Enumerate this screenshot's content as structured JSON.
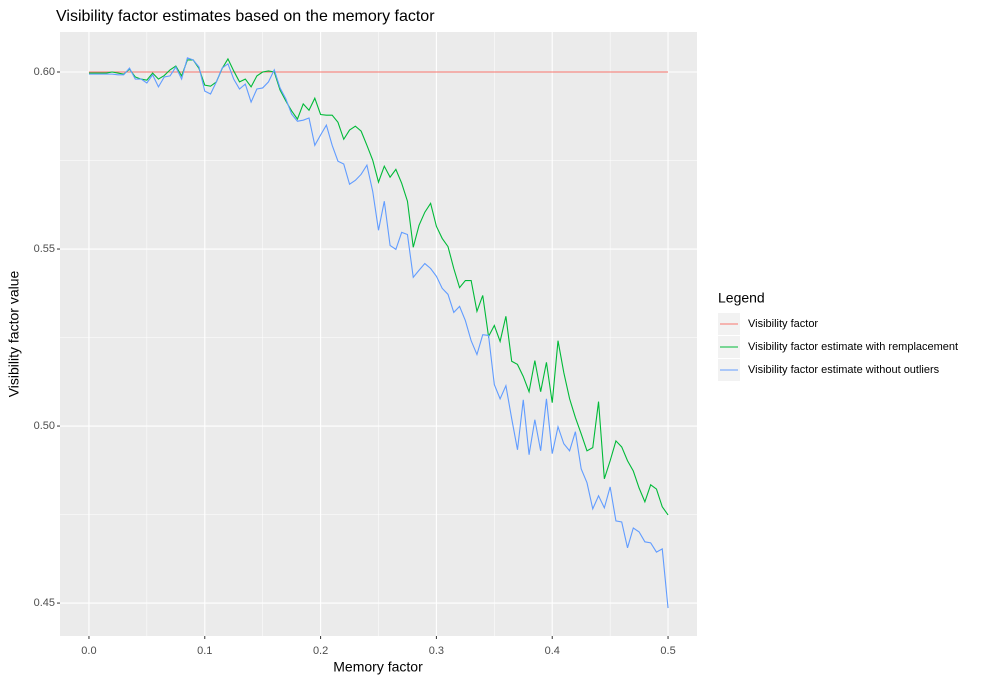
{
  "chart_data": {
    "type": "line",
    "title": "Visibility factor estimates based on the memory factor",
    "x_label": "Memory factor",
    "y_label": "Visibility factor value",
    "legend_title": "Legend",
    "legend_position": "right",
    "grid": true,
    "xlim": [
      -0.025,
      0.525
    ],
    "ylim": [
      0.4407,
      0.6113
    ],
    "xticks": [
      {
        "value": 0,
        "label": "0.0"
      },
      0.1,
      0.2,
      0.3,
      0.4,
      0.5
    ],
    "yticks": [
      0.45,
      {
        "value": 0.5,
        "label": "0.50"
      },
      0.55,
      {
        "value": 0.6,
        "label": "0.60"
      }
    ],
    "x": [
      0,
      0.005,
      0.01,
      0.015,
      0.02,
      0.025,
      0.03,
      0.035,
      0.04,
      0.045,
      0.05,
      0.055,
      0.06,
      0.065,
      0.07,
      0.075,
      0.08,
      0.085,
      0.09,
      0.095,
      0.1,
      0.105,
      0.11,
      0.115,
      0.12,
      0.125,
      0.13,
      0.135,
      0.14,
      0.145,
      0.15,
      0.155,
      0.16,
      0.165,
      0.17,
      0.175,
      0.18,
      0.185,
      0.19,
      0.195,
      0.2,
      0.205,
      0.21,
      0.215,
      0.22,
      0.225,
      0.23,
      0.235,
      0.24,
      0.245,
      0.25,
      0.255,
      0.26,
      0.265,
      0.27,
      0.275,
      0.28,
      0.285,
      0.29,
      0.295,
      0.3,
      0.305,
      0.31,
      0.315,
      0.32,
      0.325,
      0.33,
      0.335,
      0.34,
      0.345,
      0.35,
      0.355,
      0.36,
      0.365,
      0.37,
      0.375,
      0.38,
      0.385,
      0.39,
      0.395,
      0.4,
      0.405,
      0.41,
      0.415,
      0.42,
      0.425,
      0.43,
      0.435,
      0.44,
      0.445,
      0.45,
      0.455,
      0.46,
      0.465,
      0.47,
      0.475,
      0.48,
      0.485,
      0.49,
      0.495,
      0.5
    ],
    "series": [
      {
        "name": "Visibility factor",
        "color": "#F8766D",
        "values": [
          0.6,
          0.6,
          0.6,
          0.6,
          0.6,
          0.6,
          0.6,
          0.6,
          0.6,
          0.6,
          0.6,
          0.6,
          0.6,
          0.6,
          0.6,
          0.6,
          0.6,
          0.6,
          0.6,
          0.6,
          0.6,
          0.6,
          0.6,
          0.6,
          0.6,
          0.6,
          0.6,
          0.6,
          0.6,
          0.6,
          0.6,
          0.6,
          0.6,
          0.6,
          0.6,
          0.6,
          0.6,
          0.6,
          0.6,
          0.6,
          0.6,
          0.6,
          0.6,
          0.6,
          0.6,
          0.6,
          0.6,
          0.6,
          0.6,
          0.6,
          0.6,
          0.6,
          0.6,
          0.6,
          0.6,
          0.6,
          0.6,
          0.6,
          0.6,
          0.6,
          0.6,
          0.6,
          0.6,
          0.6,
          0.6,
          0.6,
          0.6,
          0.6,
          0.6,
          0.6,
          0.6,
          0.6,
          0.6,
          0.6,
          0.6,
          0.6,
          0.6,
          0.6,
          0.6,
          0.6,
          0.6,
          0.6,
          0.6,
          0.6,
          0.6,
          0.6,
          0.6,
          0.6,
          0.6,
          0.6,
          0.6,
          0.6,
          0.6,
          0.6,
          0.6,
          0.6,
          0.6,
          0.6,
          0.6,
          0.6,
          0.6
        ]
      },
      {
        "name": "Visibility factor estimate with remplacement",
        "color": "#00BA38",
        "values": [
          0.5997,
          0.5997,
          0.5997,
          0.5997,
          0.6,
          0.5997,
          0.5994,
          0.6008,
          0.5986,
          0.598,
          0.5977,
          0.5997,
          0.598,
          0.599,
          0.6006,
          0.6017,
          0.5989,
          0.6034,
          0.6034,
          0.601,
          0.5963,
          0.596,
          0.5972,
          0.601,
          0.6037,
          0.6003,
          0.5972,
          0.598,
          0.5958,
          0.5989,
          0.6,
          0.6003,
          0.6,
          0.5949,
          0.5918,
          0.589,
          0.5867,
          0.591,
          0.5892,
          0.5926,
          0.588,
          0.5878,
          0.5878,
          0.5858,
          0.581,
          0.5836,
          0.5847,
          0.5833,
          0.5793,
          0.5751,
          0.5689,
          0.5734,
          0.5703,
          0.5725,
          0.5686,
          0.5635,
          0.5505,
          0.5567,
          0.5604,
          0.5629,
          0.5564,
          0.553,
          0.5507,
          0.5445,
          0.5391,
          0.5411,
          0.5411,
          0.5324,
          0.5369,
          0.5253,
          0.5284,
          0.5239,
          0.531,
          0.5183,
          0.5174,
          0.514,
          0.5097,
          0.5185,
          0.5097,
          0.518,
          0.5066,
          0.5241,
          0.5151,
          0.5077,
          0.5024,
          0.4978,
          0.493,
          0.4939,
          0.5069,
          0.4851,
          0.4902,
          0.4958,
          0.4941,
          0.4902,
          0.4873,
          0.4825,
          0.4786,
          0.4834,
          0.4822,
          0.4772,
          0.4749
        ]
      },
      {
        "name": "Visibility factor estimate without outliers",
        "color": "#619CFF",
        "values": [
          0.5994,
          0.5994,
          0.5994,
          0.5994,
          0.5994,
          0.5992,
          0.5992,
          0.6011,
          0.598,
          0.598,
          0.5969,
          0.5992,
          0.5958,
          0.5986,
          0.5989,
          0.6014,
          0.598,
          0.604,
          0.6034,
          0.6014,
          0.5946,
          0.5938,
          0.5972,
          0.6011,
          0.6023,
          0.598,
          0.5952,
          0.5966,
          0.5915,
          0.5952,
          0.5955,
          0.5972,
          0.6006,
          0.5955,
          0.5924,
          0.5881,
          0.5861,
          0.5864,
          0.587,
          0.5793,
          0.5822,
          0.585,
          0.5793,
          0.5748,
          0.574,
          0.5683,
          0.5694,
          0.5711,
          0.5737,
          0.5663,
          0.5553,
          0.5635,
          0.551,
          0.5499,
          0.5547,
          0.5541,
          0.542,
          0.544,
          0.5459,
          0.5445,
          0.5423,
          0.5389,
          0.5372,
          0.5321,
          0.5338,
          0.5298,
          0.5241,
          0.5202,
          0.5258,
          0.5256,
          0.5117,
          0.5077,
          0.5114,
          0.5021,
          0.4933,
          0.5074,
          0.4919,
          0.5018,
          0.493,
          0.5077,
          0.4922,
          0.4998,
          0.495,
          0.493,
          0.4984,
          0.4879,
          0.484,
          0.4766,
          0.4803,
          0.4769,
          0.4828,
          0.4732,
          0.4729,
          0.4656,
          0.4712,
          0.4701,
          0.4673,
          0.467,
          0.4644,
          0.4653,
          0.4486
        ]
      }
    ]
  }
}
